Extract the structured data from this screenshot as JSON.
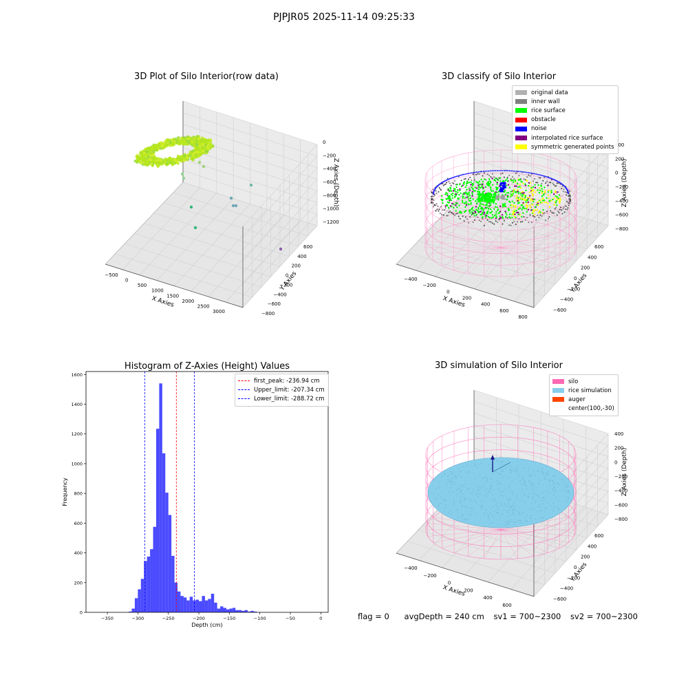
{
  "figure": {
    "suptitle": "PJPJR05 2025-11-14 09:25:33"
  },
  "panels": {
    "raw": {
      "title": "3D Plot of Silo Interior(row data)",
      "xlabel": "X Axies",
      "ylabel": "Y Axies",
      "zlabel": "Z Axies (Depth)",
      "xticks": [
        "−500",
        "0",
        "500",
        "1000",
        "1500",
        "2000",
        "2500",
        "3000"
      ],
      "yticks": [
        "600",
        "400",
        "200",
        "0",
        "−200",
        "−400",
        "−600",
        "−800"
      ],
      "zticks": [
        "0",
        "−200",
        "−400",
        "−600",
        "−800",
        "−1000",
        "−1200"
      ]
    },
    "classify": {
      "title": "3D classify of Silo Interior",
      "xlabel": "X Axies",
      "ylabel": "Y Axies",
      "zlabel": "Z Axies (Depth)",
      "xticks": [
        "−400",
        "−200",
        "0",
        "200",
        "400",
        "600",
        "800"
      ],
      "yticks": [
        "600",
        "400",
        "200",
        "0",
        "−200",
        "−400",
        "−600"
      ],
      "zticks": [
        "400",
        "200",
        "0",
        "−200",
        "−400",
        "−600",
        "−800"
      ],
      "legend": [
        {
          "label": "original data",
          "color": "#b0b0b0"
        },
        {
          "label": "inner wall",
          "color": "#808080"
        },
        {
          "label": "rice surface",
          "color": "#00ff00"
        },
        {
          "label": "obstacle",
          "color": "#ff0000"
        },
        {
          "label": "noise",
          "color": "#0000ff"
        },
        {
          "label": "interpolated rice surface",
          "color": "#800080"
        },
        {
          "label": "symmetric generated points",
          "color": "#ffff00"
        }
      ]
    },
    "simulation": {
      "title": "3D simulation of Silo Interior",
      "xlabel": "X Axies",
      "ylabel": "Y Axies",
      "zlabel": "Z Axies (Depth)",
      "xticks": [
        "−400",
        "−200",
        "0",
        "200",
        "400",
        "600"
      ],
      "yticks": [
        "600",
        "400",
        "200",
        "0",
        "−200",
        "−400",
        "−600"
      ],
      "zticks": [
        "400",
        "200",
        "0",
        "−200",
        "−400",
        "−600",
        "−800"
      ],
      "legend": [
        {
          "label": "silo",
          "color": "#ff69b4"
        },
        {
          "label": "rice simulation",
          "color": "#87ceeb"
        },
        {
          "label": "auger",
          "color": "#ff4500"
        },
        {
          "label": "center(100,-30)",
          "color": ""
        }
      ]
    }
  },
  "status": {
    "flag": "flag = 0",
    "avg_depth": "avgDepth = 240 cm",
    "sv1": "sv1 = 700~2300",
    "sv2": "sv2 = 700~2300"
  },
  "colors": {
    "hist_bar": "#4b4bff",
    "peak_line": "#ff0000",
    "limit_line": "#0000ff",
    "silo": "#ff69b4",
    "rice_sim": "#87ceeb"
  },
  "chart_data": [
    {
      "type": "heatmap",
      "title": "3D Plot of Silo Interior(row data)",
      "xlabel": "X Axies",
      "ylabel": "Y Axies",
      "zlabel": "Z Axies (Depth)",
      "xlim": [
        -600,
        3200
      ],
      "ylim": [
        -800,
        650
      ],
      "zlim": [
        -1300,
        50
      ],
      "grid": true
    },
    {
      "type": "scatter",
      "title": "3D classify of Silo Interior",
      "xlabel": "X Axies",
      "ylabel": "Y Axies",
      "zlabel": "Z Axies (Depth)",
      "xlim": [
        -500,
        850
      ],
      "ylim": [
        -650,
        650
      ],
      "zlim": [
        -900,
        450
      ],
      "grid": true,
      "legend_position": "top-right"
    },
    {
      "type": "bar",
      "title": "Histogram of Z-Axies (Height) Values",
      "xlabel": "Depth (cm)",
      "ylabel": "Frequency",
      "xlim": [
        -385,
        12
      ],
      "ylim": [
        0,
        1620
      ],
      "xticks": [
        -350,
        -300,
        -250,
        -200,
        -150,
        -100,
        -50,
        0
      ],
      "yticks": [
        0,
        200,
        400,
        600,
        800,
        1000,
        1200,
        1400,
        1600
      ],
      "bin_start": -315,
      "bin_width": 5,
      "values": [
        5,
        25,
        95,
        155,
        225,
        345,
        375,
        425,
        575,
        1235,
        1540,
        1070,
        805,
        655,
        380,
        200,
        140,
        110,
        100,
        80,
        105,
        80,
        85,
        75,
        110,
        80,
        90,
        125,
        65,
        25,
        40,
        30,
        20,
        25,
        30,
        15,
        15,
        10,
        15,
        5,
        10,
        5
      ],
      "vlines": [
        {
          "label": "first_peak: -236.94 cm",
          "x": -236.94,
          "color": "#ff0000"
        },
        {
          "label": "Upper_limit: -207.34 cm",
          "x": -207.34,
          "color": "#0000ff"
        },
        {
          "label": "Lower_limit: -288.72 cm",
          "x": -288.72,
          "color": "#0000ff"
        }
      ],
      "legend_position": "top-right"
    },
    {
      "type": "scatter",
      "title": "3D simulation of Silo Interior",
      "xlabel": "X Axies",
      "ylabel": "Y Axies",
      "zlabel": "Z Axies (Depth)",
      "xlim": [
        -500,
        750
      ],
      "ylim": [
        -650,
        650
      ],
      "zlim": [
        -900,
        450
      ],
      "grid": true,
      "legend_position": "top-right"
    }
  ]
}
